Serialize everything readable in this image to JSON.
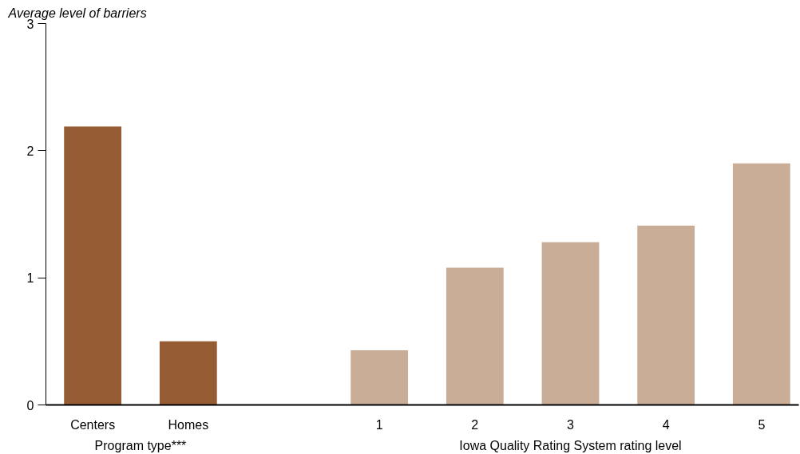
{
  "chart_data": {
    "type": "bar",
    "ylabel": "Average level of barriers",
    "categories": [
      "Centers",
      "Homes",
      null,
      "1",
      "2",
      "3",
      "4",
      "5"
    ],
    "values": [
      2.19,
      0.5,
      null,
      0.43,
      1.08,
      1.28,
      1.41,
      1.9
    ],
    "colors": [
      "#965d35",
      "#965d35",
      null,
      "#caad97",
      "#caad97",
      "#caad97",
      "#caad97",
      "#caad97"
    ],
    "ylim": [
      0,
      3
    ],
    "yticks": [
      0,
      1,
      2,
      3
    ],
    "grid": false,
    "annotations": [
      "Program type***",
      "Iowa Quality Rating System rating level"
    ]
  }
}
